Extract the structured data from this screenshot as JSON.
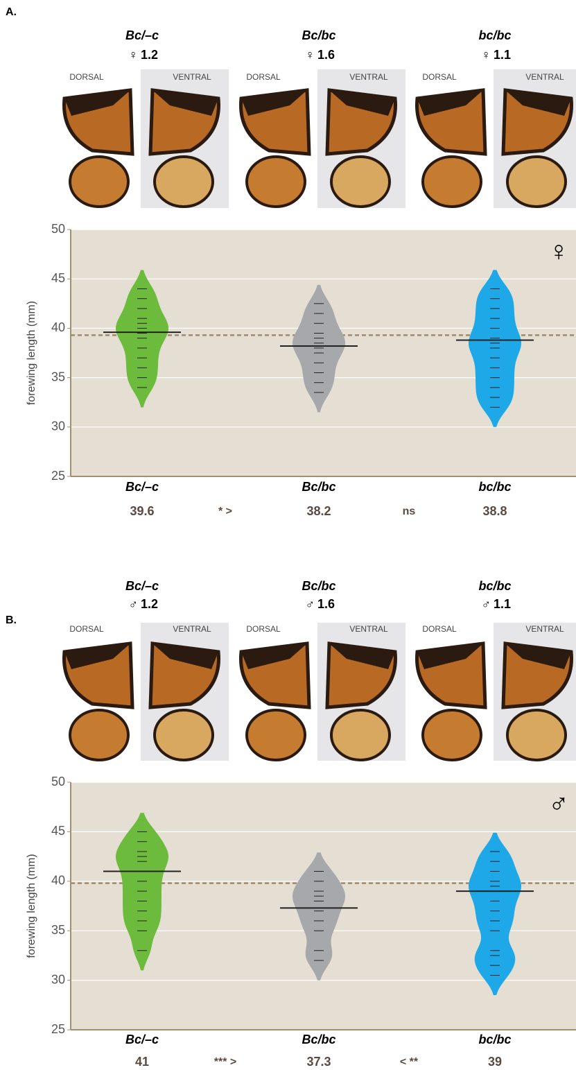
{
  "panels": [
    {
      "label": "A.",
      "view_labels": [
        "DORSAL",
        "VENTRAL"
      ],
      "genotypes": [
        {
          "name": "Bc/–c",
          "sex": "♀",
          "ratio": 1.2
        },
        {
          "name": "Bc/bc",
          "sex": "♀",
          "ratio": 1.6
        },
        {
          "name": "bc/bc",
          "sex": "♀",
          "ratio": 1.1
        }
      ]
    },
    {
      "label": "B.",
      "view_labels": [
        "DORSAL",
        "VENTRAL"
      ],
      "genotypes": [
        {
          "name": "Bc/–c",
          "sex": "♂",
          "ratio": 1.2
        },
        {
          "name": "Bc/bc",
          "sex": "♂",
          "ratio": 1.6
        },
        {
          "name": "bc/bc",
          "sex": "♂",
          "ratio": 1.1
        }
      ]
    }
  ],
  "chart_data": [
    {
      "type": "violin",
      "y_label": "forewing length (mm)",
      "sex_symbol": "♀",
      "ylim": [
        25,
        50
      ],
      "yticks": [
        25,
        30,
        35,
        40,
        45,
        50
      ],
      "grid": true,
      "reference_line": 39.3,
      "categories": [
        "Bc/–c",
        "Bc/bc",
        "bc/bc"
      ],
      "series": [
        {
          "color": "#6dbb3c",
          "points": [
            34,
            35,
            36,
            37,
            38,
            39,
            39.5,
            40,
            40.5,
            41,
            42,
            43,
            44
          ]
        },
        {
          "color": "#a7a8ab",
          "points": [
            33.5,
            34.5,
            35.5,
            36.5,
            37.5,
            38,
            38.5,
            39,
            39.5,
            40.5,
            41.5,
            42.5
          ]
        },
        {
          "color": "#1ea8e8",
          "points": [
            32,
            33,
            34,
            35,
            36,
            37,
            38,
            38.5,
            39,
            40,
            41,
            42,
            43,
            44
          ]
        }
      ],
      "values": [
        39.6,
        38.2,
        38.8
      ],
      "comparisons": [
        "* >",
        "ns"
      ]
    },
    {
      "type": "violin",
      "y_label": "forewing length (mm)",
      "sex_symbol": "♂",
      "ylim": [
        25,
        50
      ],
      "yticks": [
        25,
        30,
        35,
        40,
        45,
        50
      ],
      "grid": true,
      "reference_line": 39.8,
      "categories": [
        "Bc/–c",
        "Bc/bc",
        "bc/bc"
      ],
      "series": [
        {
          "color": "#6dbb3c",
          "points": [
            33,
            35,
            36,
            37,
            38,
            39,
            40,
            41,
            42,
            42.5,
            43,
            44,
            45
          ]
        },
        {
          "color": "#a7a8ab",
          "points": [
            32,
            33,
            35,
            36,
            37,
            38,
            38.5,
            39,
            40,
            41
          ]
        },
        {
          "color": "#1ea8e8",
          "points": [
            30.5,
            31.5,
            32.5,
            33,
            35,
            36,
            37,
            38,
            39,
            39.5,
            40,
            41,
            42,
            43
          ]
        }
      ],
      "values": [
        41.0,
        37.3,
        39.0
      ],
      "comparisons": [
        "*** >",
        "< **"
      ]
    }
  ]
}
